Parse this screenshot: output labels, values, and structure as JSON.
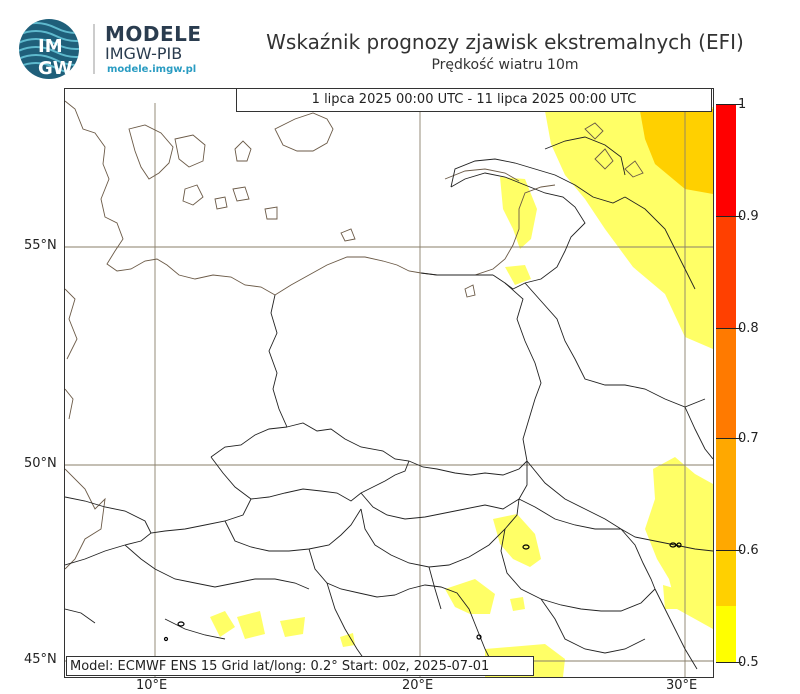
{
  "header": {
    "brand_top": "MODELE",
    "brand_mid": "IMGW-PIB",
    "brand_url": "modele.imgw.pl",
    "logo_text_top": "IM",
    "logo_text_bottom": "GW",
    "title": "Wskaźnik prognozy zjawisk ekstremalnych (EFI)",
    "subtitle": "Prędkość wiatru 10m"
  },
  "map": {
    "period": "1 lipca 2025 00:00 UTC - 11 lipca 2025 00:00 UTC",
    "info": "Model: ECMWF  ENS 15  Grid lat/long: 0.2°  Start: 00z, 2025-07-01",
    "lat_labels": [
      "55°N",
      "50°N",
      "45°N"
    ],
    "lon_labels": [
      "10°E",
      "20°E",
      "30°E"
    ]
  },
  "colorbar": {
    "labels": [
      "1",
      "0.9",
      "0.8",
      "0.7",
      "0.6",
      "0.5"
    ],
    "colors": [
      "#ff0000",
      "#ff4000",
      "#ff7a00",
      "#ffa800",
      "#ffd000",
      "#ffff00"
    ]
  }
}
